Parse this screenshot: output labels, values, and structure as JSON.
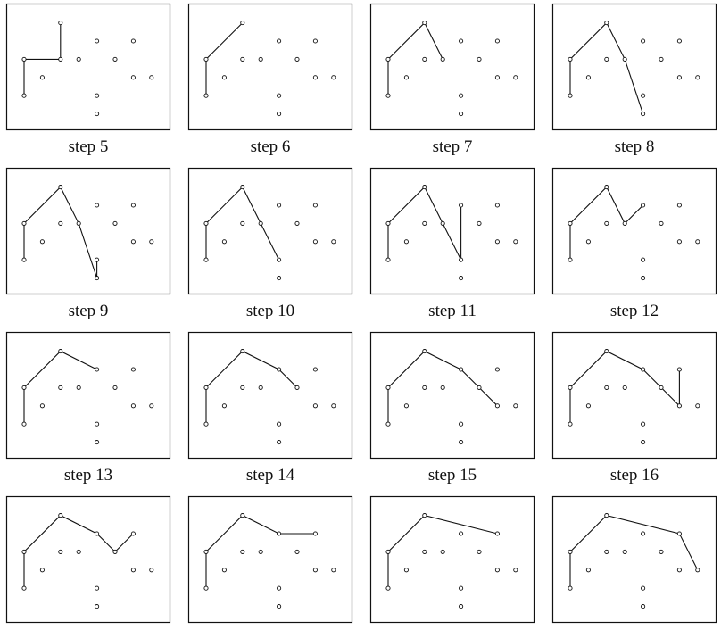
{
  "panels": [
    {
      "label": "step 5",
      "path": [
        [
          1,
          2
        ],
        [
          1,
          4
        ],
        [
          3,
          4
        ],
        [
          3,
          6
        ]
      ]
    },
    {
      "label": "step 6",
      "path": [
        [
          1,
          2
        ],
        [
          1,
          4
        ],
        [
          3,
          6
        ]
      ]
    },
    {
      "label": "step 7",
      "path": [
        [
          1,
          2
        ],
        [
          1,
          4
        ],
        [
          3,
          6
        ],
        [
          4,
          4
        ]
      ]
    },
    {
      "label": "step 8",
      "path": [
        [
          1,
          2
        ],
        [
          1,
          4
        ],
        [
          3,
          6
        ],
        [
          4,
          4
        ],
        [
          5,
          1
        ]
      ]
    },
    {
      "label": "step 9",
      "path": [
        [
          1,
          2
        ],
        [
          1,
          4
        ],
        [
          3,
          6
        ],
        [
          4,
          4
        ],
        [
          5,
          1
        ],
        [
          5,
          2
        ]
      ]
    },
    {
      "label": "step 10",
      "path": [
        [
          1,
          2
        ],
        [
          1,
          4
        ],
        [
          3,
          6
        ],
        [
          4,
          4
        ],
        [
          5,
          2
        ]
      ]
    },
    {
      "label": "step 11",
      "path": [
        [
          1,
          2
        ],
        [
          1,
          4
        ],
        [
          3,
          6
        ],
        [
          4,
          4
        ],
        [
          5,
          2
        ],
        [
          5,
          5
        ]
      ]
    },
    {
      "label": "step 12",
      "path": [
        [
          1,
          2
        ],
        [
          1,
          4
        ],
        [
          3,
          6
        ],
        [
          4,
          4
        ],
        [
          5,
          5
        ]
      ]
    },
    {
      "label": "step 13",
      "path": [
        [
          1,
          2
        ],
        [
          1,
          4
        ],
        [
          3,
          6
        ],
        [
          5,
          5
        ]
      ]
    },
    {
      "label": "step 14",
      "path": [
        [
          1,
          2
        ],
        [
          1,
          4
        ],
        [
          3,
          6
        ],
        [
          5,
          5
        ],
        [
          6,
          4
        ]
      ]
    },
    {
      "label": "step 15",
      "path": [
        [
          1,
          2
        ],
        [
          1,
          4
        ],
        [
          3,
          6
        ],
        [
          5,
          5
        ],
        [
          6,
          4
        ],
        [
          7,
          3
        ]
      ]
    },
    {
      "label": "step 16",
      "path": [
        [
          1,
          2
        ],
        [
          1,
          4
        ],
        [
          3,
          6
        ],
        [
          5,
          5
        ],
        [
          6,
          4
        ],
        [
          7,
          3
        ],
        [
          7,
          5
        ]
      ]
    },
    {
      "label": "",
      "path": [
        [
          1,
          2
        ],
        [
          1,
          4
        ],
        [
          3,
          6
        ],
        [
          5,
          5
        ],
        [
          6,
          4
        ],
        [
          7,
          5
        ]
      ]
    },
    {
      "label": "",
      "path": [
        [
          1,
          2
        ],
        [
          1,
          4
        ],
        [
          3,
          6
        ],
        [
          5,
          5
        ],
        [
          7,
          5
        ]
      ]
    },
    {
      "label": "",
      "path": [
        [
          1,
          2
        ],
        [
          1,
          4
        ],
        [
          3,
          6
        ],
        [
          7,
          5
        ]
      ]
    },
    {
      "label": "",
      "path": [
        [
          1,
          2
        ],
        [
          1,
          4
        ],
        [
          3,
          6
        ],
        [
          7,
          5
        ],
        [
          8,
          3
        ]
      ]
    }
  ],
  "points": [
    [
      1,
      2
    ],
    [
      1,
      4
    ],
    [
      2,
      3
    ],
    [
      3,
      4
    ],
    [
      3,
      6
    ],
    [
      4,
      4
    ],
    [
      5,
      1
    ],
    [
      5,
      2
    ],
    [
      5,
      5
    ],
    [
      6,
      4
    ],
    [
      7,
      3
    ],
    [
      7,
      5
    ],
    [
      8,
      3
    ]
  ]
}
